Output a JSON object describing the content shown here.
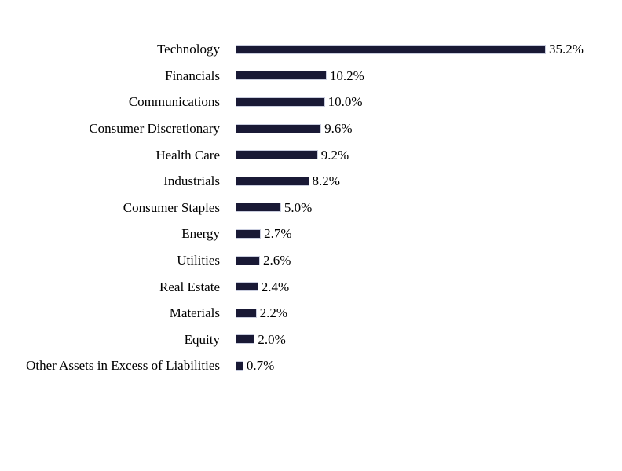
{
  "chart_data": {
    "type": "bar",
    "orientation": "horizontal",
    "title": "",
    "xlabel": "",
    "ylabel": "",
    "grid": false,
    "legend": false,
    "xlim": [
      0,
      35.2
    ],
    "categories": [
      "Technology",
      "Financials",
      "Communications",
      "Consumer Discretionary",
      "Health Care",
      "Industrials",
      "Consumer Staples",
      "Energy",
      "Utilities",
      "Real Estate",
      "Materials",
      "Equity",
      "Other Assets in Excess of Liabilities"
    ],
    "values": [
      35.2,
      10.2,
      10.0,
      9.6,
      9.2,
      8.2,
      5.0,
      2.7,
      2.6,
      2.4,
      2.2,
      2.0,
      0.7
    ],
    "value_labels": [
      "35.2%",
      "10.2%",
      "10.0%",
      "9.6%",
      "9.2%",
      "8.2%",
      "5.0%",
      "2.7%",
      "2.6%",
      "2.4%",
      "2.2%",
      "2.0%",
      "0.7%"
    ],
    "bar_color": "#191935",
    "bar_border_color": "#c9cdde",
    "text_color": "#000000",
    "background_color": "#ffffff"
  }
}
